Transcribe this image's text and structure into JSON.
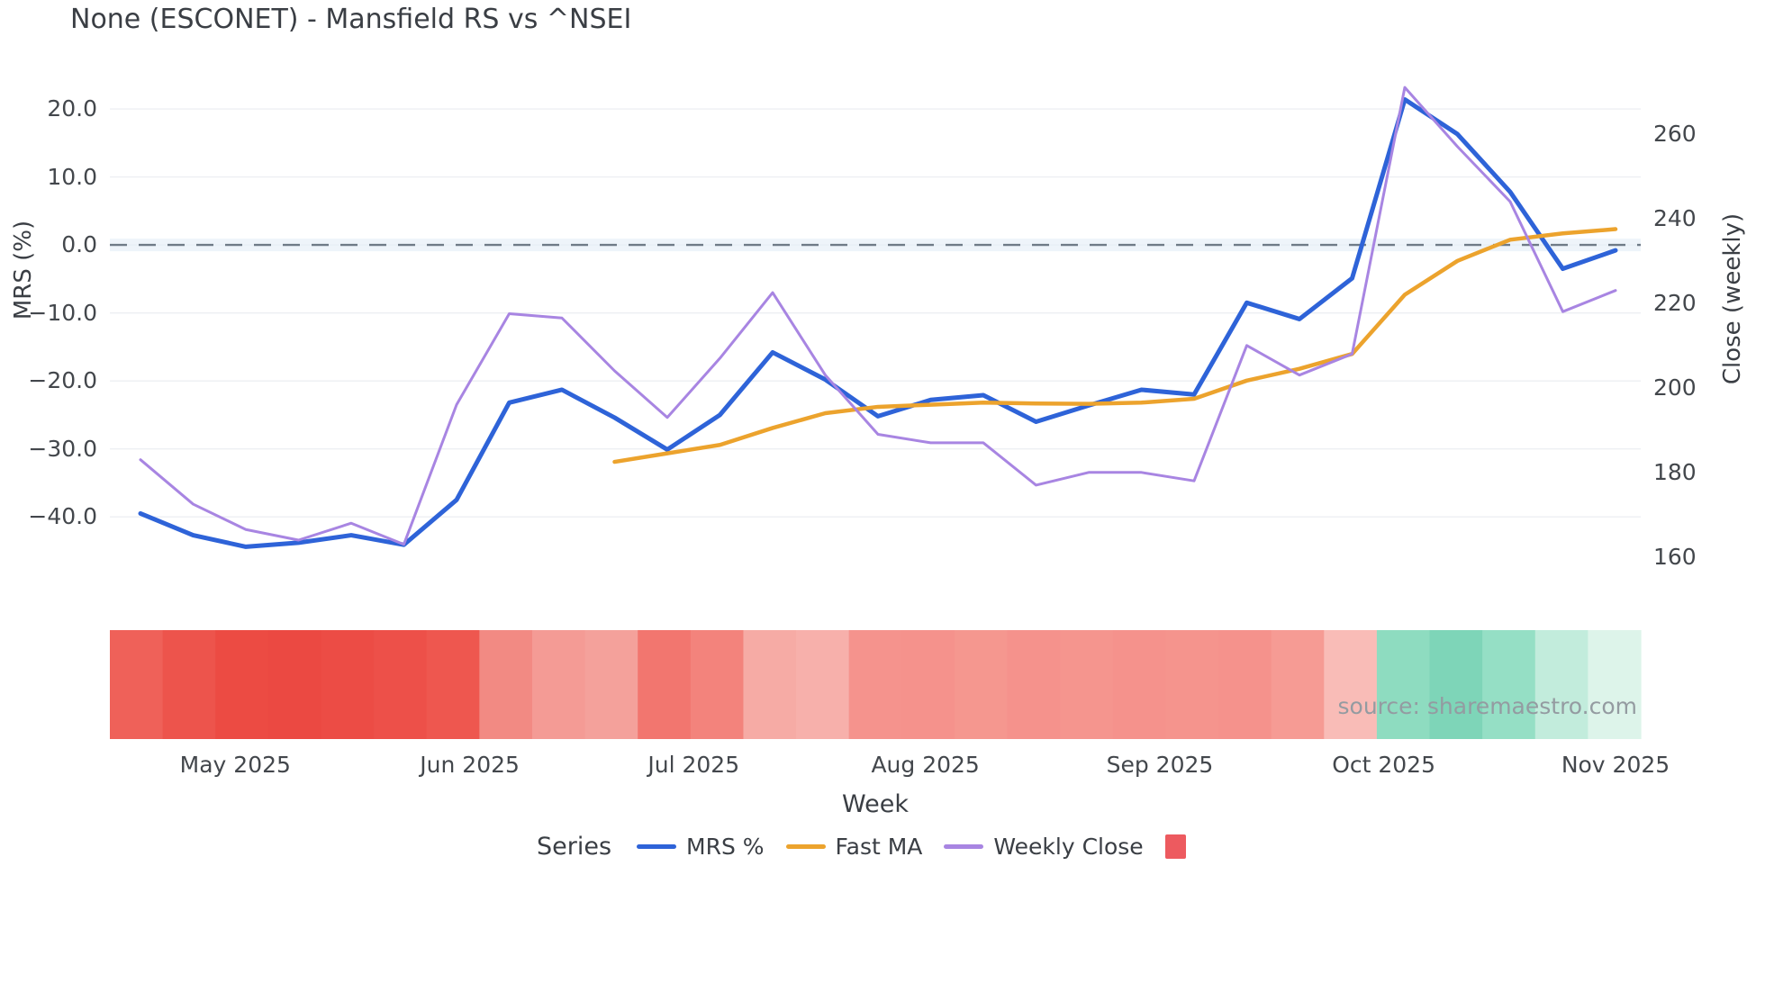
{
  "page": {
    "source_note": "source: sharemaestro.com"
  },
  "legend": {
    "label": "Series",
    "items": [
      {
        "name": "MRS %",
        "swatch": "line",
        "color": "#2e63d8"
      },
      {
        "name": "Fast MA",
        "swatch": "line",
        "color": "#eca32d"
      },
      {
        "name": "Weekly Close",
        "swatch": "line",
        "color": "#a885e2"
      },
      {
        "name": "",
        "swatch": "square",
        "color": "#ed5a5f"
      }
    ]
  },
  "chart_data": {
    "type": "line",
    "title": "None (ESCONET) - Mansfield RS vs ^NSEI",
    "xlabel": "Week",
    "ylabel_left": "MRS (%)",
    "ylabel_right": "Close (weekly)",
    "x_count": 29,
    "x_tick_labels": [
      "May 2025",
      "Jun 2025",
      "Jul 2025",
      "Aug 2025",
      "Sep 2025",
      "Oct 2025",
      "Nov 2025"
    ],
    "x_tick_positions": [
      1.8,
      6.25,
      10.5,
      14.9,
      19.35,
      23.6,
      28.0
    ],
    "left_axis": {
      "ticks": [
        20.0,
        10.0,
        0.0,
        -10.0,
        -20.0,
        -30.0,
        -40.0
      ],
      "range": [
        -50.7,
        26.1
      ],
      "zero_line_dashed": true,
      "zero_line_color": "#6f7b87",
      "gridline_color": "#edeff3"
    },
    "right_axis": {
      "ticks": [
        260,
        240,
        220,
        200,
        180,
        160
      ],
      "range": [
        152.3,
        275.7
      ]
    },
    "series": [
      {
        "name": "MRS %",
        "axis": "left",
        "color": "#2e63d8",
        "values": [
          -39.5,
          -42.7,
          -44.4,
          -43.8,
          -42.7,
          -44.1,
          -37.5,
          -23.2,
          -21.3,
          -25.4,
          -30.1,
          -25.0,
          -15.8,
          -19.8,
          -25.2,
          -22.8,
          -22.1,
          -26.0,
          -23.6,
          -21.3,
          -22.0,
          -8.5,
          -10.9,
          -4.9,
          21.4,
          16.3,
          7.8,
          -3.5,
          -0.8
        ]
      },
      {
        "name": "Fast MA",
        "axis": "right",
        "color": "#eca32d",
        "values": [
          null,
          null,
          null,
          null,
          null,
          null,
          null,
          null,
          null,
          182.5,
          184.5,
          186.5,
          190.5,
          194.0,
          195.5,
          196.0,
          196.5,
          196.3,
          196.2,
          196.5,
          197.4,
          201.7,
          204.5,
          208.0,
          222.0,
          230.0,
          235.0,
          236.5,
          237.5
        ]
      },
      {
        "name": "Weekly Close",
        "axis": "right",
        "color": "#a885e2",
        "values": [
          183,
          172.5,
          166.5,
          164,
          168,
          163,
          196,
          217.5,
          216.5,
          204,
          193,
          207,
          222.5,
          203,
          189,
          187,
          187,
          177,
          180,
          180,
          178,
          210,
          203,
          208,
          271,
          257,
          244,
          218,
          223
        ]
      }
    ],
    "heatmap_strip": {
      "colors": [
        "#ef6159",
        "#ed544c",
        "#ec4b43",
        "#eb4942",
        "#ec4c45",
        "#ed5049",
        "#ee574f",
        "#f28a83",
        "#f49b95",
        "#f4a19b",
        "#f2766f",
        "#f3837c",
        "#f6aba5",
        "#f7b0ab",
        "#f5938d",
        "#f5928c",
        "#f5978f",
        "#f5928c",
        "#f5958e",
        "#f5928c",
        "#f5948d",
        "#f5928c",
        "#f69b94",
        "#f9bcb7",
        "#8edcc0",
        "#7ed5b8",
        "#95dfc5",
        "#c2ecdc",
        "#ddf4ea"
      ]
    }
  }
}
